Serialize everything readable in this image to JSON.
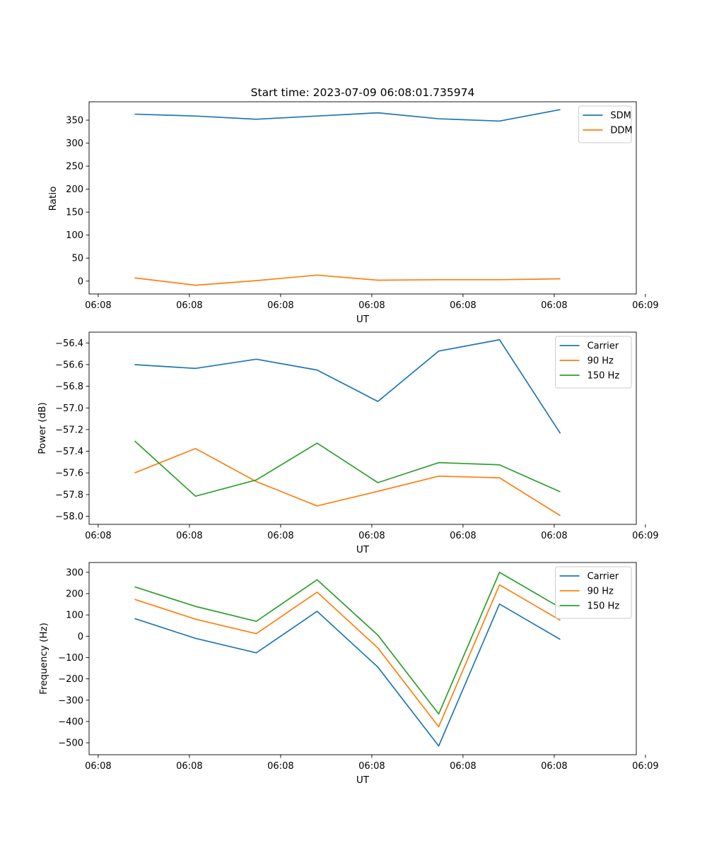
{
  "colors": {
    "blue": "#1f77b4",
    "orange": "#ff7f0e",
    "green": "#2ca02c"
  },
  "chart_data": [
    {
      "type": "line",
      "title": "Start time: 2023-07-09 06:08:01.735974",
      "xlabel": "UT",
      "ylabel": "Ratio",
      "x_seconds": [
        1,
        2,
        3,
        4,
        5,
        6,
        7,
        8
      ],
      "xlim_seconds": [
        0.25,
        9.25
      ],
      "x_ticks_seconds": [
        0.4,
        1.9,
        3.4,
        4.9,
        6.4,
        7.9,
        9.4
      ],
      "x_tick_labels": [
        "06:08",
        "06:08",
        "06:08",
        "06:08",
        "06:08",
        "06:08",
        "06:09"
      ],
      "ylim": [
        -28,
        390
      ],
      "y_ticks": [
        0,
        50,
        100,
        150,
        200,
        250,
        300,
        350
      ],
      "y_tick_labels": [
        "0",
        "50",
        "100",
        "150",
        "200",
        "250",
        "300",
        "350"
      ],
      "legend_position": "top-right",
      "series": [
        {
          "name": "SDM",
          "color": "#1f77b4",
          "values": [
            363,
            359,
            352,
            359,
            366,
            353,
            348,
            373
          ]
        },
        {
          "name": "DDM",
          "color": "#ff7f0e",
          "values": [
            7,
            -9,
            1,
            13,
            2,
            3,
            3,
            5
          ]
        }
      ]
    },
    {
      "type": "line",
      "title": "",
      "xlabel": "UT",
      "ylabel": "Power (dB)",
      "x_seconds": [
        1,
        2,
        3,
        4,
        5,
        6,
        7,
        8
      ],
      "xlim_seconds": [
        0.25,
        9.25
      ],
      "x_ticks_seconds": [
        0.4,
        1.9,
        3.4,
        4.9,
        6.4,
        7.9,
        9.4
      ],
      "x_tick_labels": [
        "06:08",
        "06:08",
        "06:08",
        "06:08",
        "06:08",
        "06:08",
        "06:09"
      ],
      "ylim": [
        -58.075,
        -56.3
      ],
      "y_ticks": [
        -58.0,
        -57.8,
        -57.6,
        -57.4,
        -57.2,
        -57.0,
        -56.8,
        -56.6,
        -56.4
      ],
      "y_tick_labels": [
        "−58.0",
        "−57.8",
        "−57.6",
        "−57.4",
        "−57.2",
        "−57.0",
        "−56.8",
        "−56.6",
        "−56.4"
      ],
      "legend_position": "top-right",
      "series": [
        {
          "name": "Carrier",
          "color": "#1f77b4",
          "values": [
            -56.6,
            -56.635,
            -56.55,
            -56.65,
            -56.94,
            -56.475,
            -56.37,
            -57.235
          ]
        },
        {
          "name": "90 Hz",
          "color": "#ff7f0e",
          "values": [
            -57.6,
            -57.375,
            -57.68,
            -57.905,
            -57.77,
            -57.63,
            -57.645,
            -57.995
          ]
        },
        {
          "name": "150 Hz",
          "color": "#2ca02c",
          "values": [
            -57.305,
            -57.815,
            -57.665,
            -57.325,
            -57.69,
            -57.505,
            -57.525,
            -57.775
          ]
        }
      ]
    },
    {
      "type": "line",
      "title": "",
      "xlabel": "UT",
      "ylabel": "Frequency (Hz)",
      "x_seconds": [
        1,
        2,
        3,
        4,
        5,
        6,
        7,
        8
      ],
      "xlim_seconds": [
        0.25,
        9.25
      ],
      "x_ticks_seconds": [
        0.4,
        1.9,
        3.4,
        4.9,
        6.4,
        7.9,
        9.4
      ],
      "x_tick_labels": [
        "06:08",
        "06:08",
        "06:08",
        "06:08",
        "06:08",
        "06:08",
        "06:09"
      ],
      "ylim": [
        -556,
        346
      ],
      "y_ticks": [
        -500,
        -400,
        -300,
        -200,
        -100,
        0,
        100,
        200,
        300
      ],
      "y_tick_labels": [
        "−500",
        "−400",
        "−300",
        "−200",
        "−100",
        "0",
        "100",
        "200",
        "300"
      ],
      "legend_position": "top-right",
      "series": [
        {
          "name": "Carrier",
          "color": "#1f77b4",
          "values": [
            83,
            -10,
            -78,
            117,
            -145,
            -515,
            151,
            -15
          ]
        },
        {
          "name": "90 Hz",
          "color": "#ff7f0e",
          "values": [
            173,
            80,
            12,
            207,
            -55,
            -425,
            241,
            75
          ]
        },
        {
          "name": "150 Hz",
          "color": "#2ca02c",
          "values": [
            232,
            140,
            70,
            265,
            5,
            -365,
            300,
            134
          ]
        }
      ]
    }
  ]
}
